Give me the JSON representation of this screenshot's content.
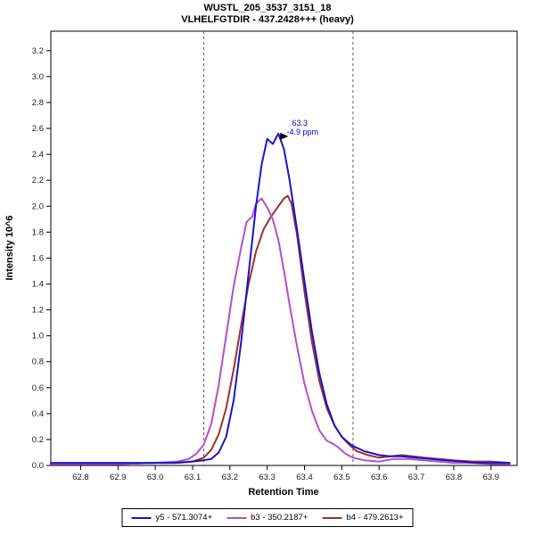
{
  "chart_data": {
    "type": "line",
    "title": "WUSTL_205_3537_3151_18",
    "subtitle": "VLHELFGTDIR - 437.2428+++ (heavy)",
    "xlabel": "Retention Time",
    "ylabel": "Intensity 10^6",
    "xlim": [
      62.72,
      63.97
    ],
    "ylim": [
      0,
      3.35
    ],
    "xticks": [
      62.8,
      62.9,
      63.0,
      63.1,
      63.2,
      63.3,
      63.4,
      63.5,
      63.6,
      63.7,
      63.8,
      63.9
    ],
    "yticks": [
      0.0,
      0.2,
      0.4,
      0.6,
      0.8,
      1.0,
      1.2,
      1.4,
      1.6,
      1.8,
      2.0,
      2.2,
      2.4,
      2.6,
      2.8,
      3.0,
      3.2
    ],
    "grid": false,
    "legend_position": "bottom",
    "boundaries": [
      63.13,
      63.53
    ],
    "boundary_style": {
      "color": "#5a5a5a",
      "dash": "3,3"
    },
    "annotation": {
      "x": 63.33,
      "y": 2.56,
      "lines": [
        "63.3",
        "-4.9 ppm"
      ],
      "color": "#0000dd"
    },
    "series": [
      {
        "id": "y5",
        "name": "y5 - 571.3074+",
        "color": "#1515cf",
        "points": [
          [
            62.72,
            0.02
          ],
          [
            62.8,
            0.02
          ],
          [
            62.9,
            0.02
          ],
          [
            63.0,
            0.02
          ],
          [
            63.05,
            0.02
          ],
          [
            63.1,
            0.03
          ],
          [
            63.13,
            0.04
          ],
          [
            63.15,
            0.05
          ],
          [
            63.17,
            0.1
          ],
          [
            63.19,
            0.22
          ],
          [
            63.21,
            0.5
          ],
          [
            63.23,
            0.95
          ],
          [
            63.25,
            1.48
          ],
          [
            63.27,
            2.0
          ],
          [
            63.285,
            2.32
          ],
          [
            63.3,
            2.52
          ],
          [
            63.315,
            2.48
          ],
          [
            63.33,
            2.56
          ],
          [
            63.345,
            2.44
          ],
          [
            63.36,
            2.2
          ],
          [
            63.38,
            1.82
          ],
          [
            63.4,
            1.42
          ],
          [
            63.42,
            1.03
          ],
          [
            63.44,
            0.71
          ],
          [
            63.46,
            0.47
          ],
          [
            63.48,
            0.31
          ],
          [
            63.5,
            0.22
          ],
          [
            63.52,
            0.17
          ],
          [
            63.53,
            0.15
          ],
          [
            63.56,
            0.11
          ],
          [
            63.6,
            0.08
          ],
          [
            63.63,
            0.07
          ],
          [
            63.66,
            0.07
          ],
          [
            63.7,
            0.06
          ],
          [
            63.74,
            0.05
          ],
          [
            63.78,
            0.04
          ],
          [
            63.82,
            0.03
          ],
          [
            63.86,
            0.02
          ],
          [
            63.9,
            0.02
          ],
          [
            63.95,
            0.02
          ]
        ]
      },
      {
        "id": "b3",
        "name": "b3 - 350.2187+",
        "color": "#b050d0",
        "points": [
          [
            62.72,
            0.01
          ],
          [
            62.8,
            0.01
          ],
          [
            62.9,
            0.01
          ],
          [
            63.0,
            0.02
          ],
          [
            63.06,
            0.03
          ],
          [
            63.09,
            0.05
          ],
          [
            63.11,
            0.09
          ],
          [
            63.13,
            0.16
          ],
          [
            63.15,
            0.32
          ],
          [
            63.17,
            0.62
          ],
          [
            63.19,
            1.0
          ],
          [
            63.21,
            1.38
          ],
          [
            63.23,
            1.68
          ],
          [
            63.245,
            1.88
          ],
          [
            63.26,
            1.92
          ],
          [
            63.27,
            2.02
          ],
          [
            63.285,
            2.06
          ],
          [
            63.3,
            1.99
          ],
          [
            63.315,
            1.9
          ],
          [
            63.33,
            1.74
          ],
          [
            63.345,
            1.5
          ],
          [
            63.36,
            1.24
          ],
          [
            63.38,
            0.92
          ],
          [
            63.4,
            0.63
          ],
          [
            63.42,
            0.42
          ],
          [
            63.44,
            0.27
          ],
          [
            63.46,
            0.19
          ],
          [
            63.475,
            0.17
          ],
          [
            63.49,
            0.14
          ],
          [
            63.51,
            0.09
          ],
          [
            63.53,
            0.06
          ],
          [
            63.56,
            0.04
          ],
          [
            63.6,
            0.03
          ],
          [
            63.64,
            0.05
          ],
          [
            63.68,
            0.05
          ],
          [
            63.72,
            0.04
          ],
          [
            63.76,
            0.03
          ],
          [
            63.8,
            0.02
          ],
          [
            63.85,
            0.02
          ],
          [
            63.9,
            0.01
          ],
          [
            63.95,
            0.01
          ]
        ]
      },
      {
        "id": "b4",
        "name": "b4 - 479.2613+",
        "color": "#a03028",
        "points": [
          [
            62.72,
            0.01
          ],
          [
            62.8,
            0.01
          ],
          [
            62.9,
            0.01
          ],
          [
            63.0,
            0.02
          ],
          [
            63.06,
            0.02
          ],
          [
            63.1,
            0.03
          ],
          [
            63.13,
            0.06
          ],
          [
            63.15,
            0.12
          ],
          [
            63.17,
            0.24
          ],
          [
            63.19,
            0.44
          ],
          [
            63.21,
            0.74
          ],
          [
            63.23,
            1.08
          ],
          [
            63.25,
            1.4
          ],
          [
            63.27,
            1.65
          ],
          [
            63.29,
            1.82
          ],
          [
            63.31,
            1.92
          ],
          [
            63.33,
            2.0
          ],
          [
            63.345,
            2.06
          ],
          [
            63.355,
            2.08
          ],
          [
            63.365,
            2.02
          ],
          [
            63.38,
            1.78
          ],
          [
            63.4,
            1.34
          ],
          [
            63.42,
            0.95
          ],
          [
            63.44,
            0.65
          ],
          [
            63.46,
            0.44
          ],
          [
            63.48,
            0.31
          ],
          [
            63.5,
            0.22
          ],
          [
            63.52,
            0.16
          ],
          [
            63.54,
            0.11
          ],
          [
            63.57,
            0.08
          ],
          [
            63.6,
            0.06
          ],
          [
            63.63,
            0.07
          ],
          [
            63.66,
            0.08
          ],
          [
            63.69,
            0.07
          ],
          [
            63.72,
            0.06
          ],
          [
            63.76,
            0.05
          ],
          [
            63.8,
            0.04
          ],
          [
            63.85,
            0.03
          ],
          [
            63.9,
            0.03
          ],
          [
            63.95,
            0.02
          ]
        ]
      }
    ]
  }
}
